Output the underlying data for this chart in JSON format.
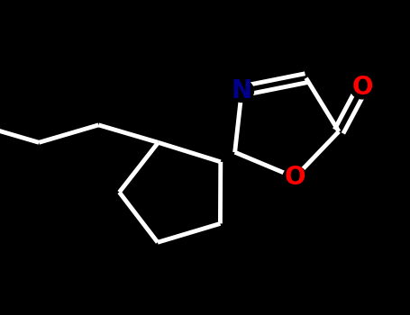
{
  "background_color": "#000000",
  "bond_color": "#ffffff",
  "O_color": "#ff0000",
  "N_color": "#00008b",
  "line_width": 3.5,
  "figsize": [
    4.55,
    3.5
  ],
  "dpi": 100,
  "label_fontsize": 20,
  "xlim": [
    -5.5,
    5.5
  ],
  "ylim": [
    -4.5,
    4.5
  ]
}
